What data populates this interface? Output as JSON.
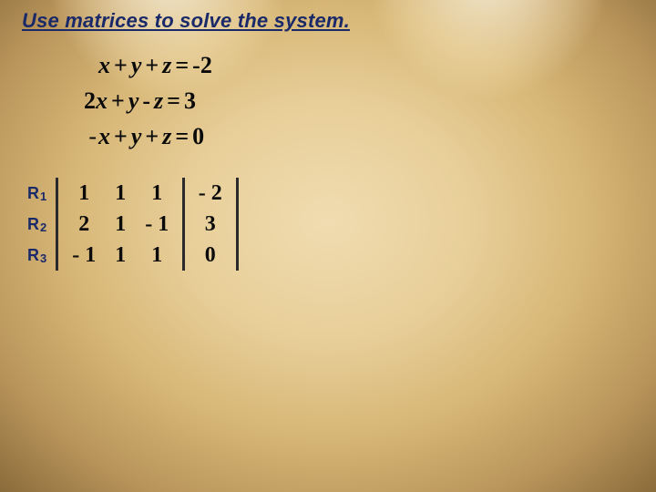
{
  "title": "Use matrices to solve the system.",
  "title_color": "#1a2968",
  "title_fontsize": 22,
  "equations": {
    "font_color": "#0a0a0a",
    "fontsize": 26,
    "rows": [
      {
        "a_sign": "",
        "a": "x",
        "op1": "+",
        "b": "y",
        "op2": "+",
        "c": "z",
        "eq": "=",
        "rhs_sign": "-",
        "rhs": "2"
      },
      {
        "a_sign": "2",
        "a": "x",
        "op1": "+",
        "b": "y",
        "op2": "-",
        "c": "z",
        "eq": "=",
        "rhs_sign": "",
        "rhs": "3"
      },
      {
        "a_sign": "-",
        "a": "x",
        "op1": "+",
        "b": "y",
        "op2": "+",
        "c": "z",
        "eq": "=",
        "rhs_sign": "",
        "rhs": "0"
      }
    ]
  },
  "row_labels": {
    "R": "R",
    "indices": [
      "1",
      "2",
      "3"
    ],
    "color": "#1a2968",
    "fontsize": 18
  },
  "matrix": {
    "font_color": "#0a0a0a",
    "fontsize": 24,
    "bracket_color": "#2a2a2a",
    "coef": [
      [
        "1",
        "1",
        "1"
      ],
      [
        "2",
        "1",
        "- 1"
      ],
      [
        "- 1",
        "1",
        "1"
      ]
    ],
    "const": [
      "- 2",
      "3",
      "0"
    ]
  },
  "background": {
    "center": "#f0dcb0",
    "mid": "#d8b878",
    "edge": "#8a6b3a",
    "spot": "#fffae0"
  }
}
